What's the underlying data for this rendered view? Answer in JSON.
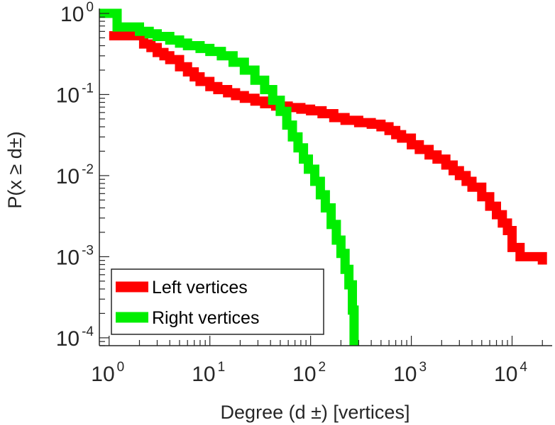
{
  "chart_data": {
    "type": "line",
    "title": "",
    "xlabel": "Degree (d ±) [vertices]",
    "ylabel": "P(x ≥ d±)",
    "xscale": "log",
    "yscale": "log",
    "xlim": [
      0.8,
      25000
    ],
    "ylim": [
      8e-05,
      1.15
    ],
    "xticks": [
      {
        "base": "10",
        "exp": "0"
      },
      {
        "base": "10",
        "exp": "1"
      },
      {
        "base": "10",
        "exp": "2"
      },
      {
        "base": "10",
        "exp": "3"
      },
      {
        "base": "10",
        "exp": "4"
      }
    ],
    "yticks": [
      {
        "base": "10",
        "exp": "0"
      },
      {
        "base": "10",
        "exp": "-1"
      },
      {
        "base": "10",
        "exp": "-2"
      },
      {
        "base": "10",
        "exp": "-3"
      },
      {
        "base": "10",
        "exp": "-4"
      }
    ],
    "grid": false,
    "legend_position": "bottom-left",
    "series": [
      {
        "name": "Left vertices",
        "color": "#ff0000",
        "x": [
          1,
          1.3,
          1.8,
          2.2,
          2.6,
          3,
          3.5,
          4,
          5,
          6,
          7,
          8,
          10,
          12,
          15,
          18,
          22,
          28,
          35,
          45,
          60,
          80,
          100,
          130,
          170,
          220,
          300,
          400,
          500,
          600,
          700,
          800,
          1000,
          1200,
          1500,
          1800,
          2200,
          2600,
          3000,
          3500,
          4000,
          5000,
          6000,
          7000,
          8000,
          9000,
          10000,
          11000,
          12000,
          13000,
          15000,
          18000,
          20000
        ],
        "y": [
          0.53,
          0.53,
          0.53,
          0.42,
          0.38,
          0.33,
          0.3,
          0.27,
          0.22,
          0.19,
          0.165,
          0.145,
          0.125,
          0.115,
          0.105,
          0.097,
          0.09,
          0.083,
          0.077,
          0.072,
          0.069,
          0.066,
          0.063,
          0.058,
          0.052,
          0.048,
          0.045,
          0.043,
          0.04,
          0.036,
          0.032,
          0.029,
          0.024,
          0.021,
          0.018,
          0.016,
          0.0135,
          0.0115,
          0.01,
          0.0085,
          0.0072,
          0.0055,
          0.0042,
          0.0033,
          0.0026,
          0.0021,
          0.0013,
          0.0013,
          0.001,
          0.001,
          0.001,
          0.001,
          0.0008
        ]
      },
      {
        "name": "Right vertices",
        "color": "#00ee00",
        "x": [
          0.8,
          1,
          1.2,
          1.5,
          2,
          2.5,
          3,
          4,
          5,
          6,
          8,
          10,
          13,
          17,
          22,
          28,
          35,
          42,
          50,
          58,
          66,
          75,
          85,
          95,
          110,
          125,
          140,
          160,
          180,
          200,
          220,
          240,
          260,
          270
        ],
        "y": [
          1.0,
          1.0,
          0.68,
          0.68,
          0.6,
          0.56,
          0.52,
          0.47,
          0.43,
          0.4,
          0.37,
          0.34,
          0.3,
          0.25,
          0.2,
          0.15,
          0.115,
          0.085,
          0.062,
          0.042,
          0.03,
          0.022,
          0.016,
          0.012,
          0.0085,
          0.0058,
          0.004,
          0.0025,
          0.0016,
          0.0011,
          0.0007,
          0.00045,
          0.00022,
          8e-05
        ]
      }
    ]
  }
}
